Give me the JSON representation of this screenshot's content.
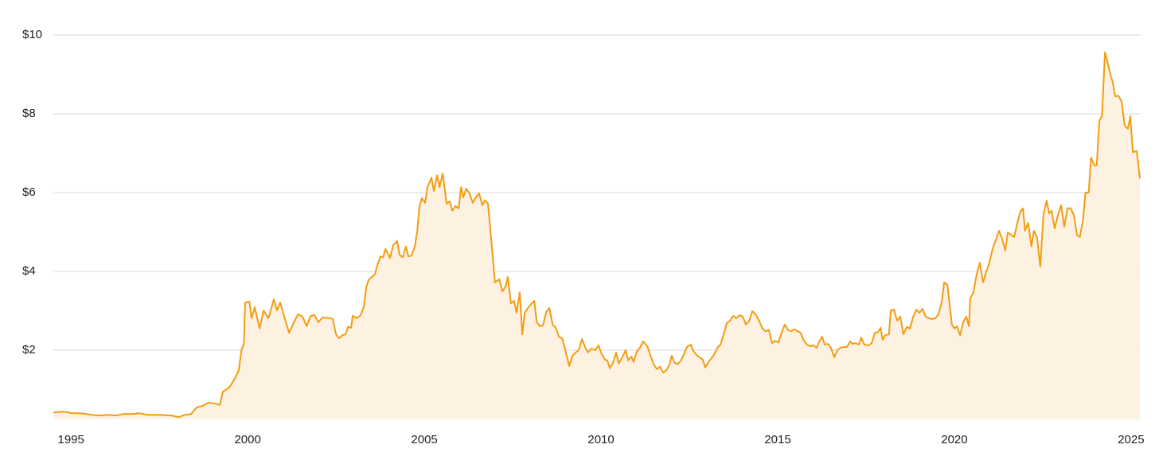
{
  "chart_data": {
    "type": "line",
    "x": [
      1994.5,
      1994.8,
      1995.02,
      1995.25,
      1995.59,
      1995.81,
      1996.04,
      1996.26,
      1996.49,
      1996.71,
      1996.94,
      1997.16,
      1997.5,
      1997.84,
      1998.06,
      1998.22,
      1998.4,
      1998.56,
      1998.74,
      1998.9,
      1999.03,
      1999.14,
      1999.21,
      1999.3,
      1999.48,
      1999.64,
      1999.75,
      1999.82,
      1999.89,
      1999.93,
      2000.05,
      2000.11,
      2000.2,
      2000.34,
      2000.45,
      2000.59,
      2000.74,
      2000.83,
      2000.92,
      2001.17,
      2001.42,
      2001.55,
      2001.67,
      2001.78,
      2001.89,
      2002.0,
      2002.12,
      2002.34,
      2002.41,
      2002.5,
      2002.59,
      2002.68,
      2002.77,
      2002.84,
      2002.93,
      2002.97,
      2003.09,
      2003.2,
      2003.29,
      2003.36,
      2003.42,
      2003.51,
      2003.6,
      2003.67,
      2003.76,
      2003.83,
      2003.9,
      2003.96,
      2004.03,
      2004.12,
      2004.23,
      2004.3,
      2004.39,
      2004.48,
      2004.55,
      2004.64,
      2004.73,
      2004.8,
      2004.86,
      2004.93,
      2005.02,
      2005.09,
      2005.2,
      2005.27,
      2005.36,
      2005.43,
      2005.52,
      2005.63,
      2005.72,
      2005.79,
      2005.88,
      2005.97,
      2006.04,
      2006.1,
      2006.19,
      2006.28,
      2006.37,
      2006.46,
      2006.55,
      2006.64,
      2006.71,
      2006.8,
      2006.87,
      2006.94,
      2007.0,
      2007.12,
      2007.21,
      2007.3,
      2007.36,
      2007.45,
      2007.54,
      2007.61,
      2007.7,
      2007.77,
      2007.84,
      2007.93,
      2008.02,
      2008.11,
      2008.18,
      2008.27,
      2008.36,
      2008.45,
      2008.54,
      2008.63,
      2008.72,
      2008.81,
      2008.9,
      2008.99,
      2009.1,
      2009.19,
      2009.28,
      2009.37,
      2009.46,
      2009.55,
      2009.62,
      2009.73,
      2009.84,
      2009.93,
      2010.02,
      2010.11,
      2010.18,
      2010.25,
      2010.34,
      2010.43,
      2010.5,
      2010.59,
      2010.7,
      2010.77,
      2010.86,
      2010.92,
      2011.01,
      2011.1,
      2011.19,
      2011.31,
      2011.4,
      2011.49,
      2011.58,
      2011.67,
      2011.76,
      2011.85,
      2011.94,
      2012.0,
      2012.07,
      2012.16,
      2012.25,
      2012.34,
      2012.43,
      2012.54,
      2012.61,
      2012.7,
      2012.79,
      2012.88,
      2012.95,
      2013.04,
      2013.13,
      2013.22,
      2013.31,
      2013.38,
      2013.47,
      2013.56,
      2013.65,
      2013.74,
      2013.83,
      2013.92,
      2014.01,
      2014.1,
      2014.19,
      2014.28,
      2014.39,
      2014.48,
      2014.57,
      2014.66,
      2014.75,
      2014.84,
      2014.93,
      2015.02,
      2015.11,
      2015.2,
      2015.29,
      2015.38,
      2015.47,
      2015.56,
      2015.65,
      2015.74,
      2015.83,
      2015.92,
      2016.01,
      2016.1,
      2016.19,
      2016.26,
      2016.33,
      2016.42,
      2016.51,
      2016.6,
      2016.69,
      2016.78,
      2016.87,
      2016.96,
      2017.05,
      2017.12,
      2017.21,
      2017.3,
      2017.36,
      2017.45,
      2017.57,
      2017.66,
      2017.75,
      2017.84,
      2017.91,
      2017.97,
      2018.04,
      2018.15,
      2018.2,
      2018.29,
      2018.38,
      2018.47,
      2018.56,
      2018.65,
      2018.74,
      2018.83,
      2018.92,
      2019.01,
      2019.1,
      2019.19,
      2019.28,
      2019.37,
      2019.46,
      2019.55,
      2019.64,
      2019.71,
      2019.8,
      2019.86,
      2019.93,
      2020.0,
      2020.07,
      2020.16,
      2020.25,
      2020.34,
      2020.41,
      2020.45,
      2020.54,
      2020.63,
      2020.72,
      2020.81,
      2020.9,
      2020.99,
      2021.08,
      2021.17,
      2021.26,
      2021.35,
      2021.44,
      2021.51,
      2021.6,
      2021.69,
      2021.78,
      2021.87,
      2021.94,
      2022.0,
      2022.09,
      2022.18,
      2022.25,
      2022.34,
      2022.43,
      2022.52,
      2022.61,
      2022.68,
      2022.75,
      2022.84,
      2022.93,
      2023.02,
      2023.11,
      2023.2,
      2023.29,
      2023.38,
      2023.47,
      2023.55,
      2023.64,
      2023.71,
      2023.8,
      2023.87,
      2023.96,
      2024.03,
      2024.1,
      2024.18,
      2024.26,
      2024.32,
      2024.41,
      2024.48,
      2024.55,
      2024.64,
      2024.73,
      2024.82,
      2024.91,
      2024.98,
      2025.05,
      2025.16,
      2025.25
    ],
    "values": [
      0.42,
      0.44,
      0.4,
      0.4,
      0.36,
      0.34,
      0.36,
      0.34,
      0.38,
      0.38,
      0.4,
      0.36,
      0.36,
      0.34,
      0.3,
      0.36,
      0.38,
      0.55,
      0.59,
      0.67,
      0.65,
      0.63,
      0.61,
      0.95,
      1.05,
      1.29,
      1.49,
      2.0,
      2.16,
      3.21,
      3.23,
      2.81,
      3.09,
      2.55,
      3.01,
      2.81,
      3.29,
      3.01,
      3.21,
      2.44,
      2.91,
      2.85,
      2.61,
      2.87,
      2.89,
      2.71,
      2.83,
      2.81,
      2.79,
      2.4,
      2.3,
      2.38,
      2.4,
      2.59,
      2.57,
      2.87,
      2.81,
      2.89,
      3.11,
      3.62,
      3.78,
      3.86,
      3.92,
      4.16,
      4.38,
      4.36,
      4.57,
      4.46,
      4.34,
      4.67,
      4.77,
      4.42,
      4.36,
      4.63,
      4.38,
      4.4,
      4.63,
      5.03,
      5.64,
      5.86,
      5.74,
      6.14,
      6.38,
      6.04,
      6.44,
      6.14,
      6.48,
      5.72,
      5.78,
      5.54,
      5.66,
      5.6,
      6.14,
      5.88,
      6.1,
      5.98,
      5.74,
      5.88,
      5.98,
      5.68,
      5.8,
      5.72,
      5.03,
      4.32,
      3.72,
      3.8,
      3.49,
      3.62,
      3.86,
      3.19,
      3.25,
      2.95,
      3.47,
      2.4,
      2.95,
      3.07,
      3.17,
      3.25,
      2.71,
      2.61,
      2.63,
      2.97,
      3.07,
      2.65,
      2.57,
      2.34,
      2.3,
      2.0,
      1.6,
      1.86,
      1.94,
      2.0,
      2.28,
      2.08,
      1.94,
      2.04,
      2.0,
      2.12,
      1.9,
      1.76,
      1.74,
      1.54,
      1.68,
      1.94,
      1.66,
      1.8,
      2.0,
      1.74,
      1.84,
      1.7,
      1.96,
      2.06,
      2.22,
      2.1,
      1.86,
      1.64,
      1.52,
      1.58,
      1.43,
      1.49,
      1.64,
      1.86,
      1.7,
      1.64,
      1.72,
      1.88,
      2.08,
      2.14,
      1.98,
      1.88,
      1.82,
      1.76,
      1.56,
      1.7,
      1.8,
      1.92,
      2.08,
      2.14,
      2.4,
      2.69,
      2.75,
      2.87,
      2.81,
      2.89,
      2.85,
      2.65,
      2.73,
      2.99,
      2.89,
      2.73,
      2.55,
      2.48,
      2.51,
      2.18,
      2.24,
      2.2,
      2.44,
      2.65,
      2.51,
      2.48,
      2.53,
      2.48,
      2.44,
      2.24,
      2.14,
      2.1,
      2.12,
      2.06,
      2.24,
      2.34,
      2.14,
      2.16,
      2.06,
      1.82,
      2.0,
      2.06,
      2.08,
      2.08,
      2.22,
      2.16,
      2.18,
      2.14,
      2.32,
      2.14,
      2.12,
      2.18,
      2.44,
      2.46,
      2.57,
      2.26,
      2.38,
      2.4,
      3.01,
      3.03,
      2.75,
      2.85,
      2.4,
      2.59,
      2.55,
      2.83,
      3.03,
      2.95,
      3.05,
      2.85,
      2.81,
      2.79,
      2.81,
      2.91,
      3.21,
      3.72,
      3.66,
      3.21,
      2.65,
      2.55,
      2.61,
      2.38,
      2.71,
      2.85,
      2.61,
      3.31,
      3.47,
      3.92,
      4.22,
      3.72,
      3.98,
      4.22,
      4.57,
      4.79,
      5.03,
      4.83,
      4.53,
      4.99,
      4.93,
      4.87,
      5.23,
      5.52,
      5.6,
      5.03,
      5.23,
      4.63,
      5.03,
      4.87,
      4.12,
      5.43,
      5.8,
      5.47,
      5.54,
      5.09,
      5.43,
      5.68,
      5.13,
      5.6,
      5.6,
      5.43,
      4.93,
      4.87,
      5.29,
      6.0,
      6.0,
      6.89,
      6.69,
      6.69,
      7.82,
      7.96,
      9.56,
      9.37,
      9.01,
      8.81,
      8.44,
      8.46,
      8.32,
      7.7,
      7.62,
      7.94,
      7.03,
      7.05,
      6.36
    ],
    "color": "#f39c12",
    "fill_color": "#fdf2e2",
    "xlim": [
      1994.5,
      2025.25
    ],
    "xticks": [
      1995,
      2000,
      2005,
      2010,
      2015,
      2020,
      2025
    ],
    "ylim": [
      0.25,
      10
    ],
    "yticks": [
      {
        "value": 2,
        "label": "$2"
      },
      {
        "value": 4,
        "label": "$4"
      },
      {
        "value": 6,
        "label": "$6"
      },
      {
        "value": 8,
        "label": "$8"
      },
      {
        "value": 10,
        "label": "$10"
      }
    ],
    "grid": true
  }
}
